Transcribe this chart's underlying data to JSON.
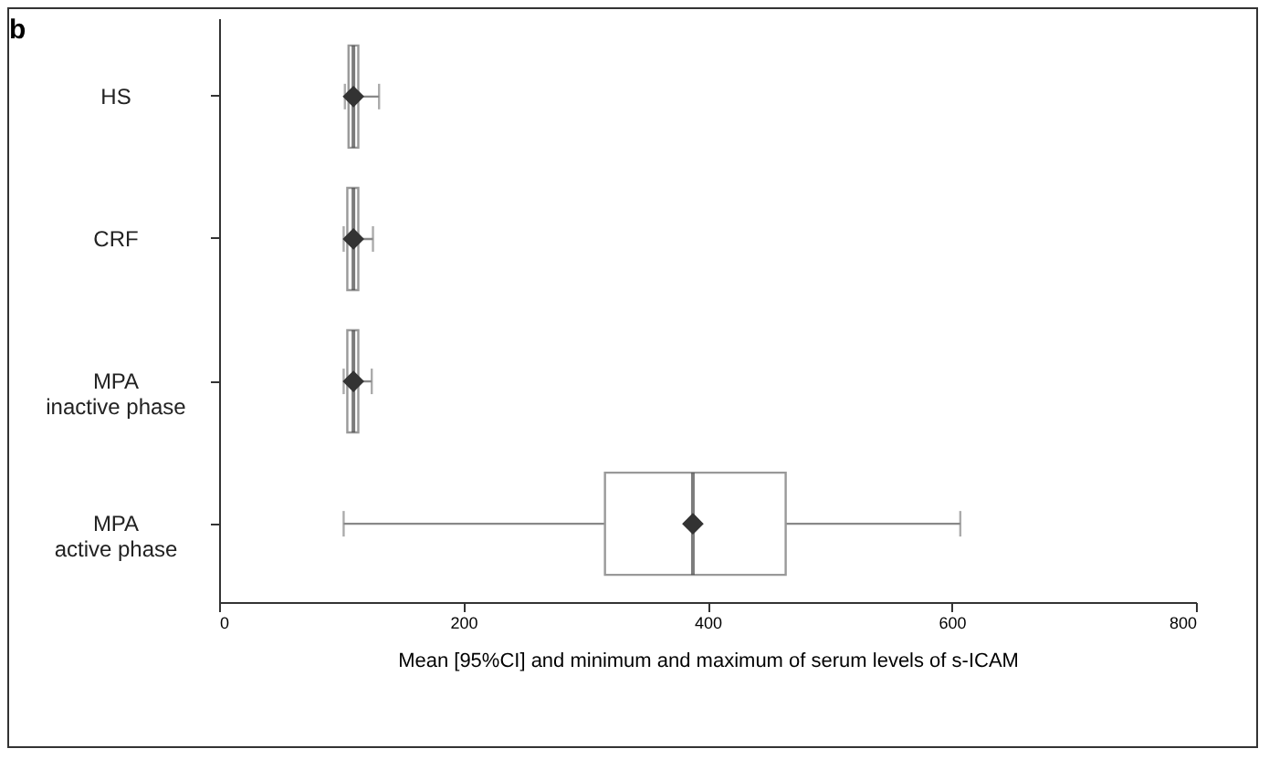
{
  "chart_data": {
    "type": "box",
    "title": "b",
    "xlabel": "Mean [95%CI] and minimum and maximum of serum levels of s-ICAM",
    "orientation": "horizontal",
    "categories": [
      "HS",
      "CRF",
      "MPA\ninactive phase",
      "MPA\nactive phase"
    ],
    "boxes": [
      {
        "low": 103,
        "q1": 106,
        "median": 110,
        "q3": 114,
        "high": 131,
        "mean": 110
      },
      {
        "low": 102,
        "q1": 105,
        "median": 110,
        "q3": 114,
        "high": 126,
        "mean": 110
      },
      {
        "low": 102,
        "q1": 105,
        "median": 110,
        "q3": 114,
        "high": 125,
        "mean": 110
      },
      {
        "low": 102,
        "q1": 316,
        "median": 388,
        "q3": 464,
        "high": 607,
        "mean": 388
      }
    ],
    "xlim": [
      0,
      800
    ],
    "xticks": [
      0,
      200,
      400,
      600,
      800
    ],
    "grid": false
  }
}
